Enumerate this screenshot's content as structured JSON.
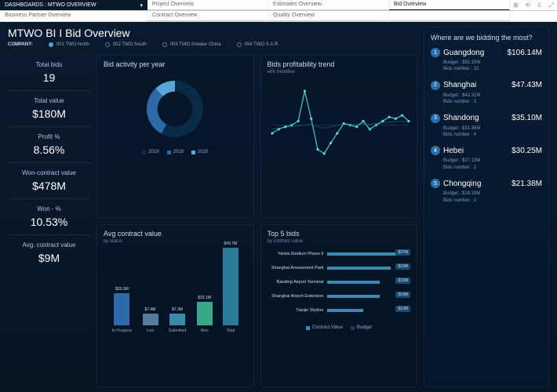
{
  "breadcrumb": "DASHBOARDS : MTWO OVERVIEW",
  "tabs_row1": [
    "Project Overview",
    "Estimates Overview",
    "Bid Overview"
  ],
  "tabs_row2": [
    "Contract Overview",
    "Quality Overview",
    ""
  ],
  "tab_bp": "Business Partner Overview",
  "active_tab": "Bid Overview",
  "title_a": "MTWO BI",
  "title_b": "Bid Overview",
  "company_label": "COMPANY:",
  "companies": [
    "001 TWO North",
    "002 TWO South",
    "003 TWO Greater China",
    "004 TWO S.A.R."
  ],
  "kpis": [
    {
      "label": "Total bids",
      "value": "19"
    },
    {
      "label": "Total value",
      "value": "$180M"
    },
    {
      "label": "Profit %",
      "value": "8.56%"
    },
    {
      "label": "Won-contract value",
      "value": "$478M"
    },
    {
      "label": "Won - %",
      "value": "10.53%"
    },
    {
      "label": "Avg. contract value",
      "value": "$9M"
    }
  ],
  "donut": {
    "title": "Bid activity per year",
    "type": "donut",
    "legend": [
      {
        "label": "2018",
        "color": "#0a2a4a"
      },
      {
        "label": "2019",
        "color": "#2e6aa8"
      },
      {
        "label": "2020",
        "color": "#5aa8d8"
      }
    ],
    "segments": [
      58,
      30,
      12
    ],
    "colors": [
      "#0a2a4a",
      "#2e6aa8",
      "#5aa8d8"
    ],
    "inner_radius": 0.62
  },
  "trend": {
    "title": "Bids profitability trend",
    "subtitle": "with trendline",
    "points": [
      40,
      45,
      48,
      50,
      55,
      92,
      58,
      20,
      15,
      28,
      40,
      52,
      50,
      48,
      55,
      45,
      50,
      55,
      60,
      58,
      62,
      55
    ],
    "trendline": [
      45,
      46,
      47,
      48,
      49,
      50,
      51,
      48,
      46,
      48,
      50,
      51,
      51,
      51,
      52,
      51,
      52,
      53,
      54,
      54,
      55,
      54
    ],
    "line_color": "#4ac8c8",
    "trend_color": "#2a6a8a",
    "marker_color": "#5ad8d8",
    "background": "transparent"
  },
  "avgcontract": {
    "title": "Avg contract value",
    "subtitle": "by status",
    "type": "bar",
    "bars": [
      {
        "label": "In Progress",
        "value": 20.3,
        "display": "$20.3M",
        "color": "#2e6aa8"
      },
      {
        "label": "Lost",
        "value": 7.4,
        "display": "$7.4M",
        "color": "#5a7a9a"
      },
      {
        "label": "Submitted",
        "value": 7.3,
        "display": "$7.3M",
        "color": "#3a8ab0"
      },
      {
        "label": "Won",
        "value": 15.1,
        "display": "$15.1M",
        "color": "#3aa888"
      },
      {
        "label": "Total",
        "value": 49.7,
        "display": "$49.7M",
        "color": "#2a7a9a"
      }
    ],
    "max": 50
  },
  "top5": {
    "title": "Top 5 bids",
    "subtitle": "by contract value",
    "type": "hbar",
    "max": 30,
    "legend": [
      {
        "label": "Contract Value",
        "color": "#3a8ab0"
      },
      {
        "label": "Budget",
        "color": "#1a3a5a"
      }
    ],
    "rows": [
      {
        "label": "Yantai Stadium Phase II",
        "fg": 27,
        "bg": 24,
        "val": "$27M"
      },
      {
        "label": "Shanghai Amusement Park",
        "fg": 23,
        "bg": 21,
        "val": "$23M"
      },
      {
        "label": "Baoding Airport Terminal",
        "fg": 19,
        "bg": 17,
        "val": "$19M"
      },
      {
        "label": "Shanghai Airport Extension",
        "fg": 19,
        "bg": 17,
        "val": "$19M"
      },
      {
        "label": "Tianjin Skyline",
        "fg": 13,
        "bg": 12,
        "val": "$13M"
      }
    ]
  },
  "regions": {
    "title": "Where are we bidding the most?",
    "items": [
      {
        "n": "1",
        "name": "Guangdong",
        "val": "$106.14M",
        "budget": "Budget : $92.15M",
        "bids": "Bids number : 10"
      },
      {
        "n": "2",
        "name": "Shanghai",
        "val": "$47.43M",
        "budget": "Budget : $43.31M",
        "bids": "Bids number : 3"
      },
      {
        "n": "3",
        "name": "Shandong",
        "val": "$35.10M",
        "budget": "Budget : $31.35M",
        "bids": "Bids number : 4"
      },
      {
        "n": "4",
        "name": "Hebei",
        "val": "$30.25M",
        "budget": "Budget : $27.13M",
        "bids": "Bids number : 2"
      },
      {
        "n": "5",
        "name": "Chongqing",
        "val": "$21.38M",
        "budget": "Budget : $18.19M",
        "bids": "Bids number : 2"
      }
    ]
  },
  "colors": {
    "dash_bg_top": "#0a1a2e",
    "dash_bg_bottom": "#061424",
    "accent": "#2e6aa8"
  }
}
